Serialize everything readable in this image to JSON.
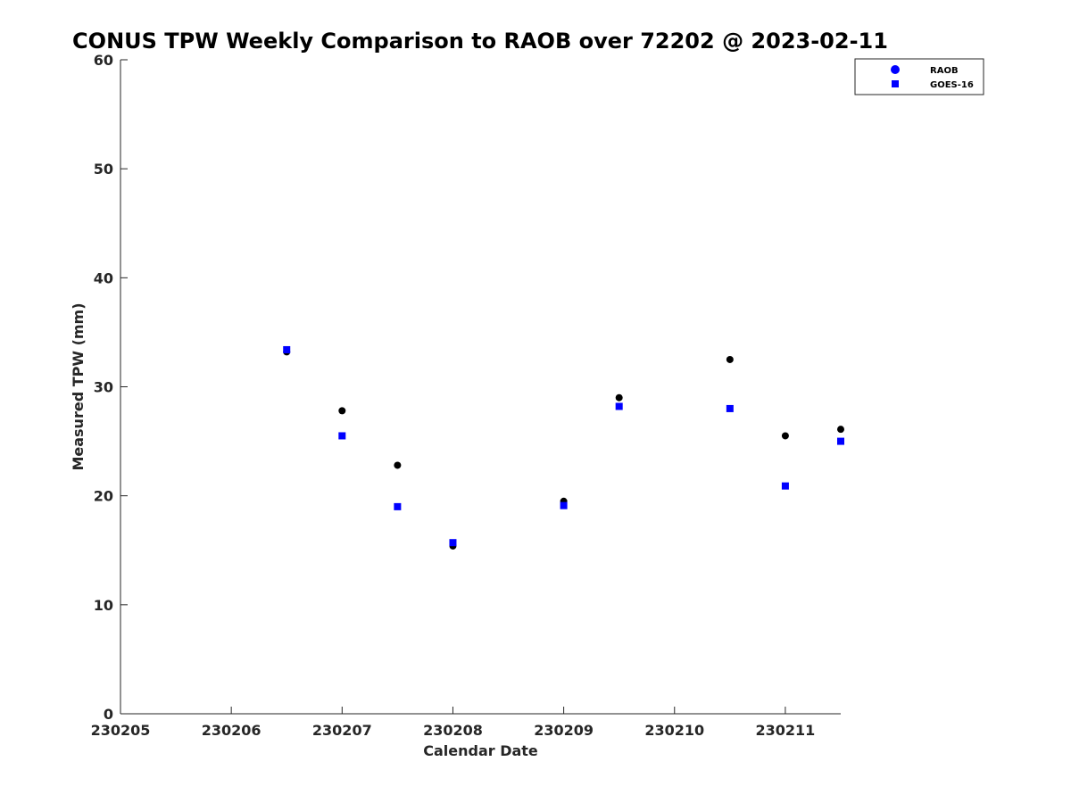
{
  "chart_data": {
    "type": "scatter",
    "title": "CONUS TPW Weekly Comparison to RAOB over 72202 @ 2023-02-11",
    "xlabel": "Calendar Date",
    "ylabel": "Measured TPW (mm)",
    "xlim": [
      230205,
      230211.5
    ],
    "ylim": [
      0,
      60
    ],
    "x_ticks": [
      230205,
      230206,
      230207,
      230208,
      230209,
      230210,
      230211
    ],
    "x_tick_labels": [
      "230205",
      "230206",
      "230207",
      "230208",
      "230209",
      "230210",
      "230211"
    ],
    "y_ticks": [
      0,
      10,
      20,
      30,
      40,
      50,
      60
    ],
    "y_tick_labels": [
      "0",
      "10",
      "20",
      "30",
      "40",
      "50",
      "60"
    ],
    "grid": false,
    "legend_position": "top-right",
    "series": [
      {
        "name": "RAOB",
        "marker": "circle",
        "color": "#000000",
        "legend_color": "#0000ff",
        "x": [
          230206.5,
          230207,
          230207.5,
          230208,
          230209,
          230209.5,
          230210.5,
          230211,
          230211.5
        ],
        "y": [
          33.2,
          27.8,
          22.8,
          15.4,
          19.5,
          29.0,
          32.5,
          25.5,
          26.1
        ]
      },
      {
        "name": "GOES-16",
        "marker": "square",
        "color": "#0000ff",
        "legend_color": "#0000ff",
        "x": [
          230206.5,
          230207,
          230207.5,
          230208,
          230209,
          230209.5,
          230210.5,
          230211,
          230211.5
        ],
        "y": [
          33.4,
          25.5,
          19.0,
          15.7,
          19.1,
          28.2,
          28.0,
          20.9,
          25.0
        ]
      }
    ]
  }
}
